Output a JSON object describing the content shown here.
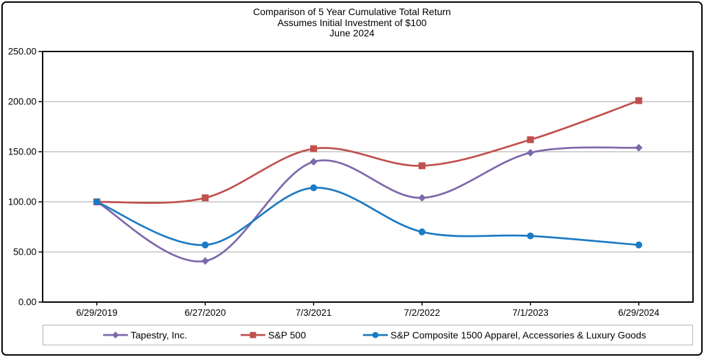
{
  "chart_data": {
    "type": "line",
    "title": "Comparison of 5 Year Cumulative Total Return",
    "subtitle_investment": "Assumes Initial Investment of $100",
    "subtitle_date": "June 2024",
    "categories": [
      "6/29/2019",
      "6/27/2020",
      "7/3/2021",
      "7/2/2022",
      "7/1/2023",
      "6/29/2024"
    ],
    "series": [
      {
        "name": "Tapestry, Inc.",
        "color": "#7D69AA",
        "marker": "diamond",
        "values": [
          100,
          41,
          140,
          104,
          149,
          154
        ]
      },
      {
        "name": "S&P 500",
        "color": "#C0504D",
        "marker": "square",
        "values": [
          100,
          104,
          153,
          136,
          162,
          201
        ]
      },
      {
        "name": "S&P Composite 1500 Apparel, Accessories & Luxury Goods",
        "color": "#1B7AC4",
        "marker": "circle",
        "values": [
          100,
          57,
          114,
          70,
          66,
          57
        ]
      }
    ],
    "y_axis": {
      "min": 0,
      "max": 250,
      "step": 50,
      "tick_labels": [
        "0.00",
        "50.00",
        "100.00",
        "150.00",
        "200.00",
        "250.00"
      ]
    },
    "grid": true,
    "smooth_lines": true,
    "legend_position": "bottom",
    "colors": {
      "grid": "#A6A6A6",
      "axis": "#000000",
      "legend_border": "#B3B3B3",
      "outer_border": "#000000",
      "background": "#FFFFFF"
    }
  }
}
